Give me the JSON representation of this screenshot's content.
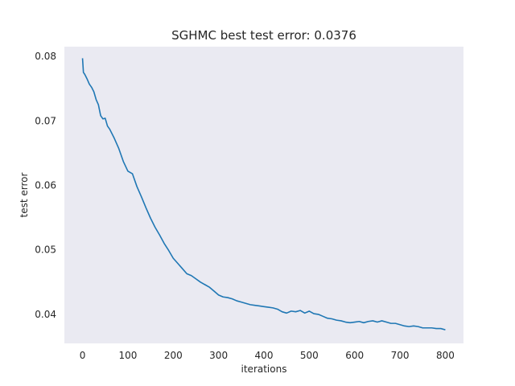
{
  "chart_data": {
    "type": "line",
    "title": "SGHMC best test error: 0.0376",
    "xlabel": "iterations",
    "ylabel": "test error",
    "xlim": [
      -40,
      840
    ],
    "ylim": [
      0.0355,
      0.0815
    ],
    "xticks": [
      0,
      100,
      200,
      300,
      400,
      500,
      600,
      700,
      800
    ],
    "xtick_labels": [
      "0",
      "100",
      "200",
      "300",
      "400",
      "500",
      "600",
      "700",
      "800"
    ],
    "yticks": [
      0.04,
      0.05,
      0.06,
      0.07,
      0.08
    ],
    "ytick_labels": [
      "0.04",
      "0.05",
      "0.06",
      "0.07",
      "0.08"
    ],
    "grid": false,
    "background": "#eaeaf2",
    "series": [
      {
        "color": "#1f77b4",
        "x": [
          0,
          2,
          5,
          10,
          15,
          20,
          25,
          30,
          35,
          40,
          45,
          50,
          55,
          60,
          70,
          80,
          90,
          100,
          110,
          120,
          130,
          140,
          150,
          160,
          170,
          180,
          190,
          200,
          210,
          220,
          230,
          240,
          250,
          260,
          270,
          280,
          290,
          300,
          310,
          320,
          330,
          340,
          350,
          360,
          370,
          380,
          390,
          400,
          410,
          420,
          430,
          440,
          450,
          460,
          470,
          480,
          490,
          500,
          510,
          520,
          530,
          540,
          550,
          560,
          570,
          580,
          590,
          600,
          610,
          620,
          630,
          640,
          650,
          660,
          670,
          680,
          690,
          700,
          710,
          720,
          730,
          740,
          750,
          760,
          770,
          780,
          790,
          800
        ],
        "values": [
          0.0797,
          0.0775,
          0.0772,
          0.0765,
          0.0757,
          0.0752,
          0.0745,
          0.0733,
          0.0725,
          0.0708,
          0.0703,
          0.0704,
          0.0692,
          0.0687,
          0.0673,
          0.0657,
          0.0637,
          0.0622,
          0.0618,
          0.0598,
          0.0582,
          0.0565,
          0.0549,
          0.0535,
          0.0523,
          0.051,
          0.0499,
          0.0487,
          0.0479,
          0.0471,
          0.0463,
          0.046,
          0.0455,
          0.045,
          0.0446,
          0.0442,
          0.0436,
          0.043,
          0.0427,
          0.0426,
          0.0424,
          0.0421,
          0.0419,
          0.0417,
          0.0415,
          0.0414,
          0.0413,
          0.0412,
          0.0411,
          0.041,
          0.0408,
          0.0404,
          0.0402,
          0.0405,
          0.0404,
          0.0406,
          0.0402,
          0.0405,
          0.0401,
          0.04,
          0.0397,
          0.0394,
          0.0393,
          0.0391,
          0.039,
          0.0388,
          0.0387,
          0.0388,
          0.0389,
          0.0387,
          0.0389,
          0.039,
          0.0388,
          0.039,
          0.0388,
          0.0386,
          0.0386,
          0.0384,
          0.0382,
          0.0381,
          0.0382,
          0.0381,
          0.0379,
          0.0379,
          0.0379,
          0.0378,
          0.0378,
          0.0376
        ]
      }
    ]
  }
}
